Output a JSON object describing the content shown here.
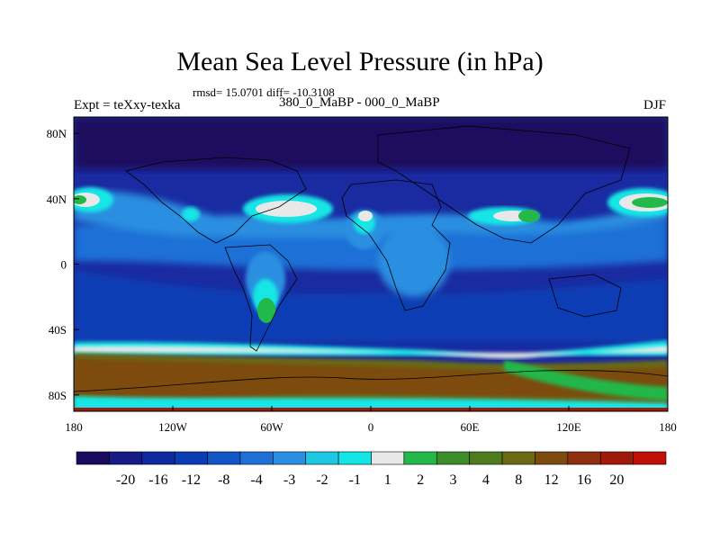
{
  "title": "Mean Sea Level Pressure (in hPa)",
  "stats": "rmsd= 15.0701 diff= -10.3108",
  "experiment": "Expt = teXxy-texka",
  "period": "380_0_MaBP - 000_0_MaBP",
  "season": "DJF",
  "axes": {
    "x_ticks": [
      "180",
      "120W",
      "60W",
      "0",
      "60E",
      "120E",
      "180"
    ],
    "y_ticks": [
      "80N",
      "40N",
      "0",
      "40S",
      "80S"
    ]
  },
  "colorbar": {
    "colors": [
      "#1a0a5e",
      "#171b86",
      "#0f2a9f",
      "#0a3cb4",
      "#1354c6",
      "#1f6fd6",
      "#2a8fe0",
      "#1ec8e2",
      "#14e6e6",
      "#e8e8e8",
      "#22b84a",
      "#3c8c2a",
      "#4e7b1c",
      "#6a6a14",
      "#7c4b10",
      "#8e3010",
      "#a01a0c",
      "#c01008"
    ],
    "labels": [
      "-20",
      "-16",
      "-12",
      "-8",
      "-4",
      "-3",
      "-2",
      "-1",
      "1",
      "2",
      "3",
      "4",
      "8",
      "12",
      "16",
      "20"
    ]
  },
  "map_colors": {
    "background": "#1a2aa0",
    "polar": "#1a0a5e",
    "low": "#0a3cb4",
    "mid": "#1f6fd6",
    "light": "#2a8fe0",
    "cyan": "#14e6e6",
    "white": "#e8e8e8",
    "green": "#22b84a",
    "olive": "#6a6a14",
    "brown": "#7c4b10",
    "red": "#a01a0c"
  }
}
